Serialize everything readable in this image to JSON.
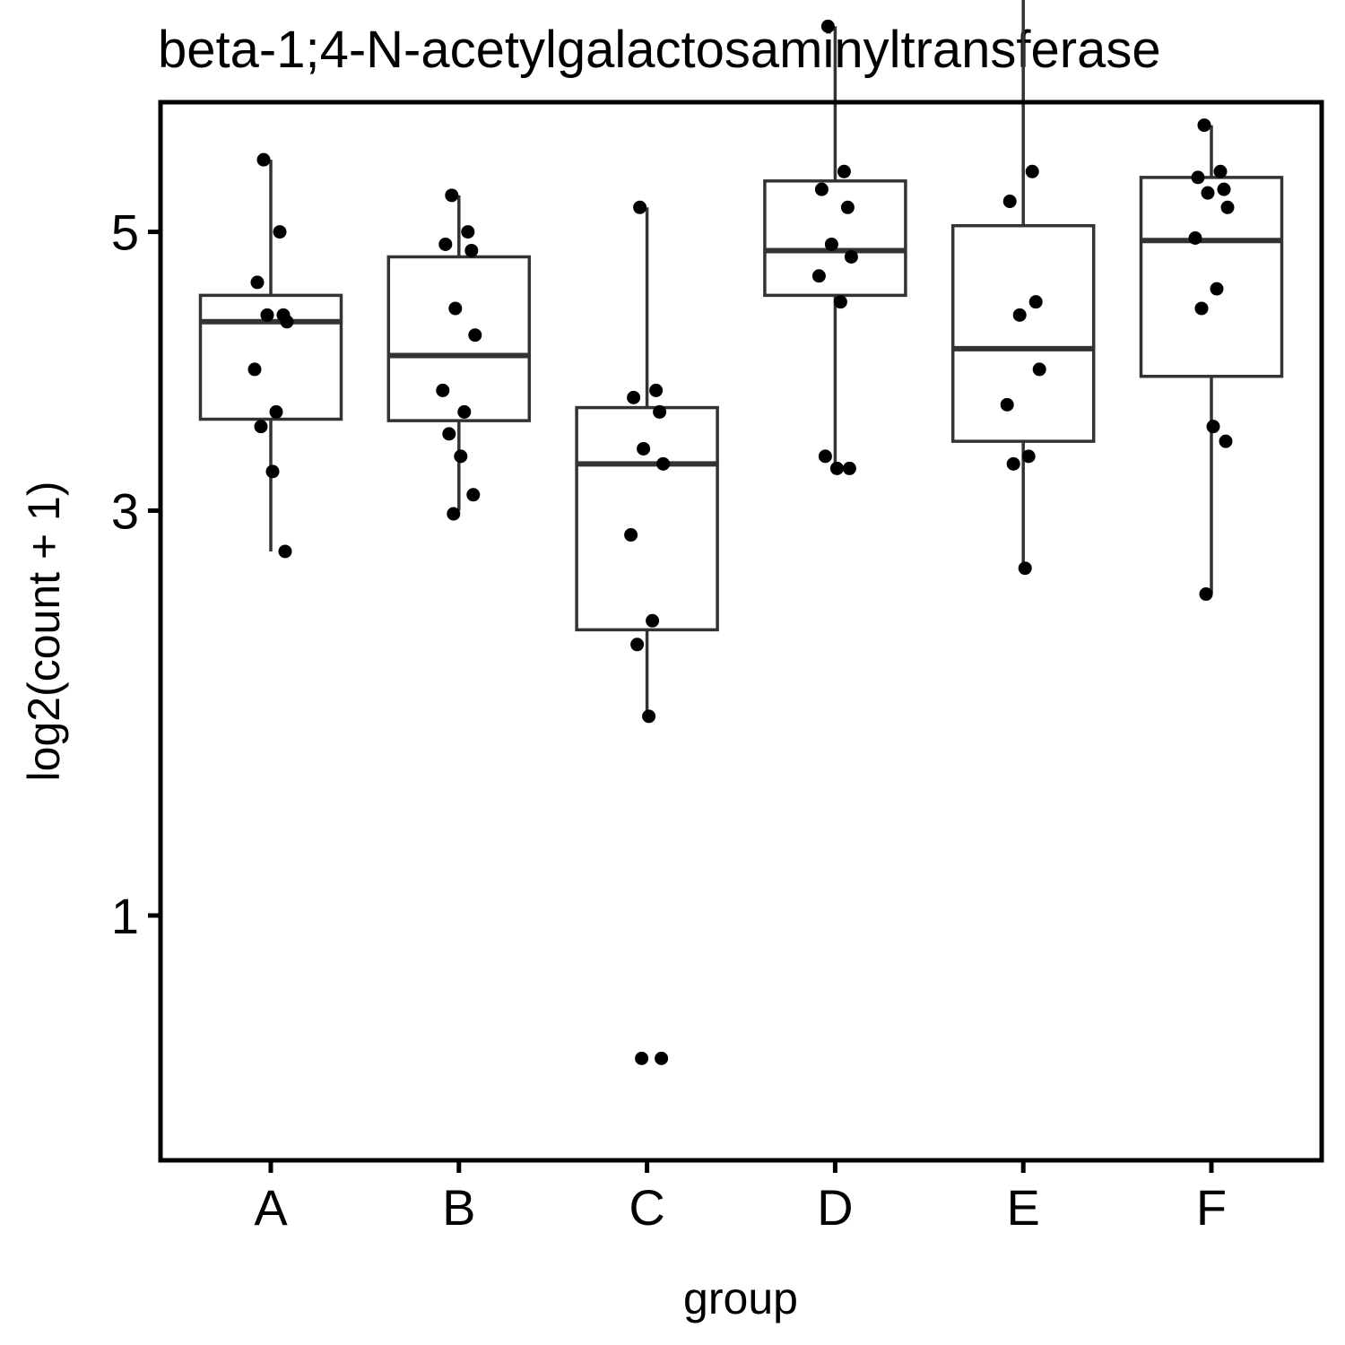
{
  "chart_data": {
    "type": "boxplot",
    "title": "beta-1;4-N-acetylgalactosaminyltransferase",
    "xlabel": "group",
    "ylabel": "log2(count + 1)",
    "y_scale": "sqrt",
    "ylim": [
      0.25,
      7.25
    ],
    "yticks": [
      1,
      3,
      5
    ],
    "categories": [
      "A",
      "B",
      "C",
      "D",
      "E",
      "F"
    ],
    "boxes": [
      {
        "group": "A",
        "min": 2.75,
        "q1": 3.6,
        "median": 4.3,
        "q3": 4.5,
        "max": 5.6
      },
      {
        "group": "B",
        "min": 3.0,
        "q1": 3.59,
        "median": 4.05,
        "q3": 4.8,
        "max": 5.3
      },
      {
        "group": "C",
        "min": 1.85,
        "q1": 2.3,
        "median": 3.3,
        "q3": 3.68,
        "max": 5.2
      },
      {
        "group": "D",
        "min": 3.25,
        "q1": 4.5,
        "median": 4.85,
        "q3": 5.42,
        "max": 6.8
      },
      {
        "group": "E",
        "min": 2.65,
        "q1": 3.45,
        "median": 4.1,
        "q3": 5.05,
        "max": 7.2
      },
      {
        "group": "F",
        "min": 2.5,
        "q1": 3.9,
        "median": 4.93,
        "q3": 5.45,
        "max": 5.9
      }
    ],
    "points": [
      {
        "group": "A",
        "values": [
          5.6,
          5.0,
          4.6,
          4.35,
          4.35,
          4.3,
          3.95,
          3.65,
          3.55,
          3.25,
          2.75
        ]
      },
      {
        "group": "B",
        "values": [
          5.3,
          5.0,
          4.9,
          4.85,
          4.4,
          4.2,
          3.8,
          3.65,
          3.5,
          3.35,
          3.1,
          2.98
        ]
      },
      {
        "group": "C",
        "values": [
          5.2,
          3.8,
          3.75,
          3.65,
          3.4,
          3.3,
          2.85,
          2.35,
          2.22,
          1.85,
          0.55,
          0.55
        ]
      },
      {
        "group": "D",
        "values": [
          6.8,
          5.5,
          5.35,
          5.2,
          4.9,
          4.8,
          4.65,
          4.45,
          3.35,
          3.27,
          3.27
        ]
      },
      {
        "group": "E",
        "values": [
          7.2,
          5.5,
          5.25,
          4.45,
          4.35,
          3.95,
          3.7,
          3.35,
          3.3,
          2.65
        ]
      },
      {
        "group": "F",
        "values": [
          5.9,
          5.5,
          5.45,
          5.35,
          5.32,
          5.2,
          4.95,
          4.55,
          4.4,
          3.55,
          3.45,
          2.5
        ]
      }
    ],
    "colors": {
      "box_stroke": "#333333",
      "median": "#333333",
      "point": "#000000",
      "axis": "#000000",
      "background": "#ffffff"
    },
    "grid": false,
    "legend": "none"
  }
}
